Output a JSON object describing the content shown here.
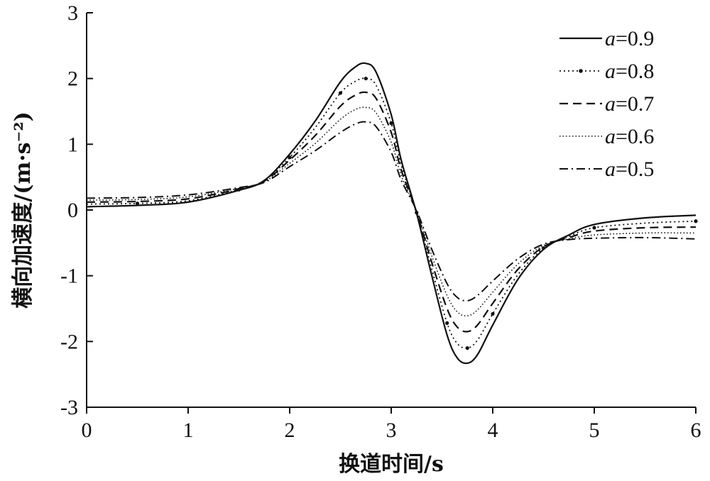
{
  "chart_data": {
    "type": "line",
    "xlabel": "换道时间/s",
    "ylabel": "横向加速度/(m·s⁻²)",
    "xlim": [
      0,
      6
    ],
    "ylim": [
      -3,
      3
    ],
    "xticks": [
      0,
      1,
      2,
      3,
      4,
      5,
      6
    ],
    "yticks": [
      -3,
      -2,
      -1,
      0,
      1,
      2,
      3
    ],
    "grid": false,
    "legend_position": "top-right",
    "series": [
      {
        "name": "a=0.9",
        "var": "a",
        "value_text": "=0.9",
        "style": "solid",
        "x": [
          0,
          0.5,
          1,
          1.5,
          1.75,
          2,
          2.25,
          2.5,
          2.65,
          2.75,
          2.85,
          3,
          3.1,
          3.25,
          3.4,
          3.55,
          3.65,
          3.75,
          3.85,
          4,
          4.25,
          4.5,
          4.75,
          5,
          5.5,
          6
        ],
        "y": [
          0.05,
          0.07,
          0.12,
          0.3,
          0.45,
          0.85,
          1.35,
          1.95,
          2.18,
          2.23,
          2.1,
          1.45,
          0.75,
          -0.05,
          -1.0,
          -1.9,
          -2.25,
          -2.33,
          -2.2,
          -1.75,
          -1.05,
          -0.6,
          -0.38,
          -0.22,
          -0.12,
          -0.08
        ]
      },
      {
        "name": "a=0.8",
        "var": "a",
        "value_text": "=0.8",
        "style": "dotted-marker",
        "x": [
          0,
          0.5,
          1,
          1.5,
          1.75,
          2,
          2.25,
          2.5,
          2.65,
          2.75,
          2.85,
          3,
          3.1,
          3.25,
          3.4,
          3.55,
          3.65,
          3.75,
          3.85,
          4,
          4.25,
          4.5,
          4.75,
          5,
          5.5,
          6
        ],
        "y": [
          0.09,
          0.1,
          0.14,
          0.31,
          0.45,
          0.8,
          1.25,
          1.78,
          1.96,
          2.0,
          1.9,
          1.32,
          0.68,
          -0.04,
          -0.9,
          -1.72,
          -2.03,
          -2.1,
          -1.98,
          -1.58,
          -0.98,
          -0.58,
          -0.4,
          -0.27,
          -0.2,
          -0.17
        ]
      },
      {
        "name": "a=0.7",
        "var": "a",
        "value_text": "=0.7",
        "style": "dashed",
        "x": [
          0,
          0.5,
          1,
          1.5,
          1.75,
          2,
          2.25,
          2.5,
          2.65,
          2.75,
          2.85,
          3,
          3.1,
          3.25,
          3.4,
          3.55,
          3.65,
          3.75,
          3.85,
          4,
          4.25,
          4.5,
          4.75,
          5,
          5.5,
          6
        ],
        "y": [
          0.12,
          0.13,
          0.17,
          0.32,
          0.44,
          0.76,
          1.13,
          1.58,
          1.75,
          1.79,
          1.7,
          1.18,
          0.6,
          -0.03,
          -0.8,
          -1.5,
          -1.78,
          -1.85,
          -1.75,
          -1.42,
          -0.9,
          -0.56,
          -0.42,
          -0.32,
          -0.27,
          -0.26
        ]
      },
      {
        "name": "a=0.6",
        "var": "a",
        "value_text": "=0.6",
        "style": "fine-dotted",
        "x": [
          0,
          0.5,
          1,
          1.5,
          1.75,
          2,
          2.25,
          2.5,
          2.65,
          2.75,
          2.85,
          3,
          3.1,
          3.25,
          3.4,
          3.55,
          3.65,
          3.75,
          3.85,
          4,
          4.25,
          4.5,
          4.75,
          5,
          5.5,
          6
        ],
        "y": [
          0.15,
          0.16,
          0.2,
          0.33,
          0.43,
          0.71,
          1.01,
          1.38,
          1.53,
          1.56,
          1.48,
          1.03,
          0.52,
          -0.02,
          -0.7,
          -1.3,
          -1.55,
          -1.61,
          -1.52,
          -1.25,
          -0.82,
          -0.54,
          -0.44,
          -0.38,
          -0.35,
          -0.35
        ]
      },
      {
        "name": "a=0.5",
        "var": "a",
        "value_text": "=0.5",
        "style": "dash-dot",
        "x": [
          0,
          0.5,
          1,
          1.5,
          1.75,
          2,
          2.25,
          2.5,
          2.65,
          2.75,
          2.85,
          3,
          3.1,
          3.25,
          3.4,
          3.55,
          3.65,
          3.75,
          3.85,
          4,
          4.25,
          4.5,
          4.75,
          5,
          5.5,
          6
        ],
        "y": [
          0.18,
          0.19,
          0.23,
          0.34,
          0.42,
          0.66,
          0.9,
          1.18,
          1.31,
          1.34,
          1.27,
          0.88,
          0.45,
          -0.01,
          -0.6,
          -1.12,
          -1.33,
          -1.38,
          -1.3,
          -1.08,
          -0.74,
          -0.52,
          -0.45,
          -0.43,
          -0.42,
          -0.44
        ]
      }
    ]
  }
}
